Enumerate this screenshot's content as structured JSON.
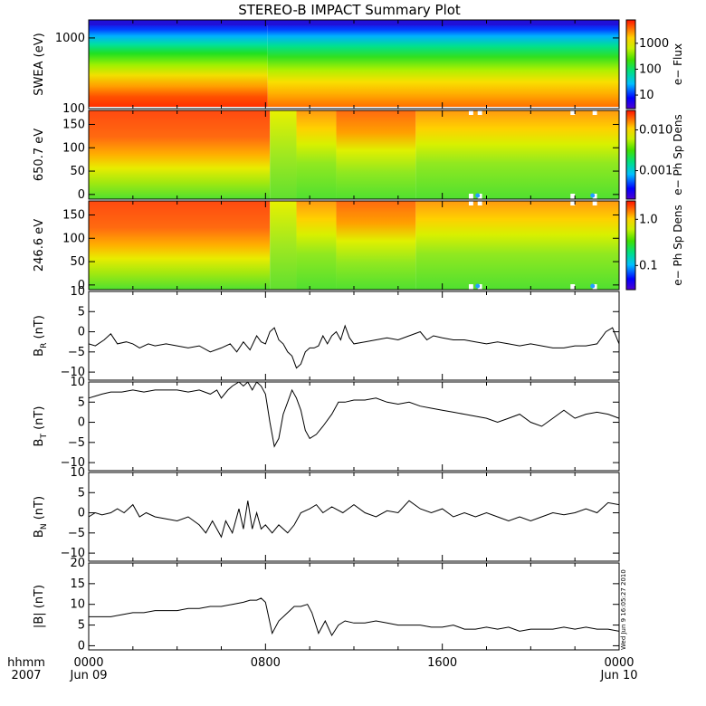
{
  "chart_data": {
    "type": "multi-panel timeseries",
    "title": "STEREO-B IMPACT Summary Plot",
    "time_axis": {
      "hours_range": [
        0,
        24
      ],
      "ticks": [
        {
          "hours": 0,
          "label": "0000",
          "sublabel": "Jun 09"
        },
        {
          "hours": 8,
          "label": "0800",
          "sublabel": ""
        },
        {
          "hours": 16,
          "label": "1600",
          "sublabel": ""
        },
        {
          "hours": 24,
          "label": "0000",
          "sublabel": "Jun 10"
        }
      ],
      "corner_label_top": "hhmm",
      "corner_label_bottom": "2007"
    },
    "stamp": "Wed Jun  9 16:05:27 2010",
    "panels": [
      {
        "id": "swea",
        "type": "heatmap",
        "ylabel": "SWEA (eV)",
        "yscale": "log",
        "ylim": [
          100,
          1800
        ],
        "yticks": [
          {
            "value": 100,
            "label": "100"
          },
          {
            "value": 1000,
            "label": "1000"
          }
        ],
        "colorbar": {
          "label": "e− Flux",
          "scale": "log",
          "range": [
            3,
            8000
          ],
          "ticks": [
            {
              "value": 10,
              "label": "10"
            },
            {
              "value": 100,
              "label": "100"
            },
            {
              "value": 1000,
              "label": "1000"
            }
          ]
        }
      },
      {
        "id": "pad650",
        "type": "heatmap",
        "ylabel": "650.7 eV",
        "yscale": "linear",
        "ylim": [
          -10,
          180
        ],
        "yticks": [
          {
            "value": 0,
            "label": "0"
          },
          {
            "value": 50,
            "label": "50"
          },
          {
            "value": 100,
            "label": "100"
          },
          {
            "value": 150,
            "label": "150"
          }
        ],
        "colorbar": {
          "label": "e− Ph Sp Dens",
          "scale": "log",
          "range": [
            0.0002,
            0.03
          ],
          "ticks": [
            {
              "value": 0.001,
              "label": "0.001"
            },
            {
              "value": 0.01,
              "label": "0.010"
            }
          ]
        }
      },
      {
        "id": "pad246",
        "type": "heatmap",
        "ylabel": "246.6 eV",
        "yscale": "linear",
        "ylim": [
          -10,
          180
        ],
        "yticks": [
          {
            "value": 0,
            "label": "0"
          },
          {
            "value": 50,
            "label": "50"
          },
          {
            "value": 100,
            "label": "100"
          },
          {
            "value": 150,
            "label": "150"
          }
        ],
        "colorbar": {
          "label": "e− Ph Sp Dens",
          "scale": "log",
          "range": [
            0.03,
            2.5
          ],
          "ticks": [
            {
              "value": 0.1,
              "label": "0.1"
            },
            {
              "value": 1.0,
              "label": "1.0"
            }
          ]
        }
      },
      {
        "id": "br",
        "type": "line",
        "ylabel": "B",
        "ylabel_sub": "R",
        "ylabel_unit": "(nT)",
        "ylim": [
          -12,
          10
        ],
        "yticks": [
          {
            "value": -10,
            "label": "−10"
          },
          {
            "value": -5,
            "label": "−5"
          },
          {
            "value": 0,
            "label": "0"
          },
          {
            "value": 5,
            "label": "5"
          },
          {
            "value": 10,
            "label": "10"
          }
        ],
        "x": [
          0,
          0.3,
          0.7,
          1.0,
          1.3,
          1.7,
          2.0,
          2.3,
          2.7,
          3.0,
          3.5,
          4.0,
          4.5,
          5.0,
          5.5,
          6.0,
          6.4,
          6.7,
          7.0,
          7.3,
          7.6,
          7.8,
          8.0,
          8.2,
          8.4,
          8.6,
          8.8,
          9.0,
          9.2,
          9.4,
          9.6,
          9.8,
          10.0,
          10.2,
          10.4,
          10.6,
          10.8,
          11.0,
          11.2,
          11.4,
          11.6,
          11.8,
          12.0,
          12.5,
          13.0,
          13.5,
          14.0,
          14.5,
          15.0,
          15.3,
          15.6,
          16.0,
          16.5,
          17.0,
          17.5,
          18.0,
          18.5,
          19.0,
          19.5,
          20.0,
          20.5,
          21.0,
          21.5,
          22.0,
          22.5,
          23.0,
          23.4,
          23.7,
          24.0
        ],
        "y": [
          -3,
          -3.5,
          -2,
          -0.5,
          -3,
          -2.5,
          -3,
          -4,
          -3,
          -3.5,
          -3,
          -3.5,
          -4,
          -3.5,
          -5,
          -4,
          -3,
          -5,
          -2.5,
          -4.5,
          -1,
          -2.5,
          -3,
          0,
          1,
          -2,
          -3,
          -5,
          -6,
          -9,
          -8,
          -5,
          -4,
          -4,
          -3.5,
          -1,
          -3,
          -1,
          0,
          -2,
          1.5,
          -1.5,
          -3,
          -2.5,
          -2,
          -1.5,
          -2,
          -1,
          0,
          -2,
          -1,
          -1.5,
          -2,
          -2,
          -2.5,
          -3,
          -2.5,
          -3,
          -3.5,
          -3,
          -3.5,
          -4,
          -4,
          -3.5,
          -3.5,
          -3,
          0,
          1,
          -3
        ]
      },
      {
        "id": "bt",
        "type": "line",
        "ylabel": "B",
        "ylabel_sub": "T",
        "ylabel_unit": "(nT)",
        "ylim": [
          -12,
          10
        ],
        "yticks": [
          {
            "value": -10,
            "label": "−10"
          },
          {
            "value": -5,
            "label": "−5"
          },
          {
            "value": 0,
            "label": "0"
          },
          {
            "value": 5,
            "label": "5"
          },
          {
            "value": 10,
            "label": "10"
          }
        ],
        "x": [
          0,
          0.3,
          0.6,
          1.0,
          1.5,
          2.0,
          2.5,
          3.0,
          3.5,
          4.0,
          4.5,
          5.0,
          5.5,
          5.8,
          6.0,
          6.3,
          6.5,
          6.8,
          7.0,
          7.2,
          7.4,
          7.6,
          7.8,
          8.0,
          8.2,
          8.4,
          8.6,
          8.8,
          9.0,
          9.2,
          9.4,
          9.6,
          9.8,
          10.0,
          10.3,
          10.6,
          11.0,
          11.3,
          11.6,
          12.0,
          12.5,
          13.0,
          13.5,
          14.0,
          14.5,
          15.0,
          15.5,
          16.0,
          16.5,
          17.0,
          17.5,
          18.0,
          18.5,
          19.0,
          19.5,
          20.0,
          20.5,
          21.0,
          21.5,
          22.0,
          22.5,
          23.0,
          23.5,
          24.0
        ],
        "y": [
          6,
          6.5,
          7,
          7.5,
          7.5,
          8,
          7.5,
          8,
          8,
          8,
          7.5,
          8,
          7,
          8,
          6,
          8,
          9,
          10,
          9,
          10,
          8,
          10,
          9,
          7,
          0,
          -6,
          -4,
          2,
          5,
          8,
          6,
          3,
          -2,
          -4,
          -3,
          -1,
          2,
          5,
          5,
          5.5,
          5.5,
          6,
          5,
          4.5,
          5,
          4,
          3.5,
          3,
          2.5,
          2,
          1.5,
          1,
          0,
          1,
          2,
          0,
          -1,
          1,
          3,
          1,
          2,
          2.5,
          2,
          1
        ]
      },
      {
        "id": "bn",
        "type": "line",
        "ylabel": "B",
        "ylabel_sub": "N",
        "ylabel_unit": "(nT)",
        "ylim": [
          -12,
          10
        ],
        "yticks": [
          {
            "value": -10,
            "label": "−10"
          },
          {
            "value": -5,
            "label": "−5"
          },
          {
            "value": 0,
            "label": "0"
          },
          {
            "value": 5,
            "label": "5"
          },
          {
            "value": 10,
            "label": "10"
          }
        ],
        "x": [
          0,
          0.3,
          0.6,
          1.0,
          1.3,
          1.6,
          2.0,
          2.3,
          2.6,
          3.0,
          3.5,
          4.0,
          4.5,
          5.0,
          5.3,
          5.6,
          6.0,
          6.2,
          6.5,
          6.8,
          7.0,
          7.2,
          7.4,
          7.6,
          7.8,
          8.0,
          8.3,
          8.6,
          9.0,
          9.3,
          9.6,
          10.0,
          10.3,
          10.6,
          11.0,
          11.5,
          12.0,
          12.5,
          13.0,
          13.5,
          14.0,
          14.5,
          15.0,
          15.5,
          16.0,
          16.5,
          17.0,
          17.5,
          18.0,
          18.5,
          19.0,
          19.5,
          20.0,
          20.5,
          21.0,
          21.5,
          22.0,
          22.5,
          23.0,
          23.5,
          24.0
        ],
        "y": [
          -1,
          0,
          -0.5,
          0,
          1,
          0,
          2,
          -1,
          0,
          -1,
          -1.5,
          -2,
          -1,
          -3,
          -5,
          -2,
          -6,
          -2,
          -5,
          1,
          -4,
          3,
          -4,
          0,
          -4,
          -3,
          -5,
          -3,
          -5,
          -3,
          0,
          1,
          2,
          0,
          1.5,
          0,
          2,
          0,
          -1,
          0.5,
          0,
          3,
          1,
          0,
          1,
          -1,
          0,
          -1,
          0,
          -1,
          -2,
          -1,
          -2,
          -1,
          0,
          -0.5,
          0,
          1,
          0,
          2.5,
          2
        ]
      },
      {
        "id": "bmag",
        "type": "line",
        "ylabel": "|B| (nT)",
        "ylim": [
          -1,
          20
        ],
        "yticks": [
          {
            "value": 0,
            "label": "0"
          },
          {
            "value": 5,
            "label": "5"
          },
          {
            "value": 10,
            "label": "10"
          },
          {
            "value": 15,
            "label": "15"
          },
          {
            "value": 20,
            "label": "20"
          }
        ],
        "x": [
          0,
          0.5,
          1.0,
          1.5,
          2.0,
          2.5,
          3.0,
          3.5,
          4.0,
          4.5,
          5.0,
          5.5,
          6.0,
          6.5,
          7.0,
          7.3,
          7.6,
          7.8,
          8.0,
          8.1,
          8.3,
          8.6,
          9.0,
          9.3,
          9.6,
          9.9,
          10.1,
          10.4,
          10.7,
          11.0,
          11.3,
          11.6,
          12.0,
          12.5,
          13.0,
          13.5,
          14.0,
          14.5,
          15.0,
          15.5,
          16.0,
          16.5,
          17.0,
          17.5,
          18.0,
          18.5,
          19.0,
          19.5,
          20.0,
          20.5,
          21.0,
          21.5,
          22.0,
          22.5,
          23.0,
          23.5,
          24.0
        ],
        "y": [
          7,
          7,
          7,
          7.5,
          8,
          8,
          8.5,
          8.5,
          8.5,
          9,
          9,
          9.5,
          9.5,
          10,
          10.5,
          11,
          11,
          11.5,
          10.5,
          8,
          3,
          6,
          8,
          9.5,
          9.5,
          10,
          8,
          3,
          6,
          2.5,
          5,
          6,
          5.5,
          5.5,
          6,
          5.5,
          5,
          5,
          5,
          4.5,
          4.5,
          5,
          4,
          4,
          4.5,
          4,
          4.5,
          3.5,
          4,
          4,
          4,
          4.5,
          4,
          4.5,
          4,
          4,
          3.5
        ]
      }
    ]
  }
}
